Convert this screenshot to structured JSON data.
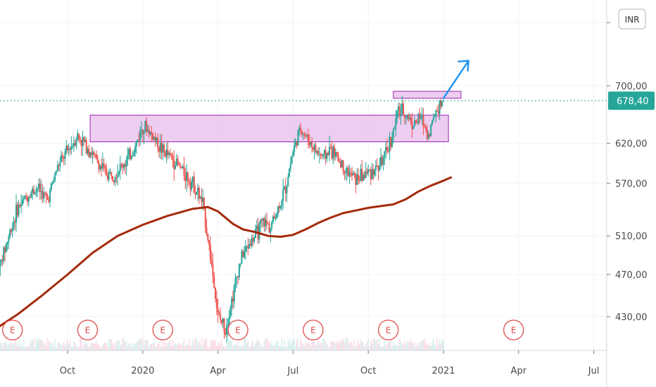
{
  "colors": {
    "up": "#26a69a",
    "down": "#ef5350",
    "ma": "#a52a0a",
    "zone_fill": "#e6b8ea",
    "zone_stroke": "#9c27b0",
    "arrow": "#2196f3",
    "price_badge": "#26a69a",
    "earnings": "#e04a4a",
    "grid": "#f0f3fa"
  },
  "currency_badge": "INR",
  "earnings_marker": "E",
  "chart_data": {
    "type": "candlestick",
    "yaxis": {
      "ticks": [
        "430,00",
        "470,00",
        "510,00",
        "570,00",
        "620,00",
        "700,00"
      ],
      "tick_values": [
        430,
        470,
        510,
        570,
        620,
        700
      ]
    },
    "xaxis": {
      "ticks": [
        "Oct",
        "2020",
        "Apr",
        "Jul",
        "Oct",
        "2021",
        "Apr",
        "Jul"
      ],
      "tick_months": [
        0,
        3,
        6,
        9,
        12,
        15,
        18,
        21
      ]
    },
    "last_price": 678.4,
    "last_price_label": "678,40",
    "price_path": [
      [
        -2.8,
        470
      ],
      [
        -2.4,
        505
      ],
      [
        -2.0,
        540
      ],
      [
        -1.6,
        555
      ],
      [
        -1.2,
        565
      ],
      [
        -0.8,
        550
      ],
      [
        -0.4,
        590
      ],
      [
        0.0,
        610
      ],
      [
        0.4,
        630
      ],
      [
        0.8,
        615
      ],
      [
        1.2,
        595
      ],
      [
        1.6,
        580
      ],
      [
        2.0,
        585
      ],
      [
        2.4,
        600
      ],
      [
        2.7,
        615
      ],
      [
        3.0,
        645
      ],
      [
        3.4,
        630
      ],
      [
        3.8,
        610
      ],
      [
        4.2,
        600
      ],
      [
        4.6,
        585
      ],
      [
        5.0,
        570
      ],
      [
        5.4,
        545
      ],
      [
        5.8,
        470
      ],
      [
        6.0,
        430
      ],
      [
        6.3,
        420
      ],
      [
        6.6,
        450
      ],
      [
        6.9,
        485
      ],
      [
        7.2,
        500
      ],
      [
        7.5,
        510
      ],
      [
        7.8,
        525
      ],
      [
        8.1,
        520
      ],
      [
        8.4,
        540
      ],
      [
        8.7,
        565
      ],
      [
        9.0,
        610
      ],
      [
        9.3,
        640
      ],
      [
        9.6,
        625
      ],
      [
        9.9,
        610
      ],
      [
        10.2,
        602
      ],
      [
        10.5,
        612
      ],
      [
        10.8,
        600
      ],
      [
        11.1,
        585
      ],
      [
        11.5,
        575
      ],
      [
        12.0,
        583
      ],
      [
        12.4,
        590
      ],
      [
        12.7,
        605
      ],
      [
        13.0,
        635
      ],
      [
        13.2,
        665
      ],
      [
        13.5,
        660
      ],
      [
        13.8,
        645
      ],
      [
        14.1,
        655
      ],
      [
        14.4,
        630
      ],
      [
        14.7,
        665
      ],
      [
        15.0,
        678.4
      ]
    ],
    "moving_average": [
      [
        -2.8,
        420
      ],
      [
        -2.0,
        432
      ],
      [
        -1.0,
        450
      ],
      [
        0.0,
        470
      ],
      [
        1.0,
        492
      ],
      [
        2.0,
        510
      ],
      [
        3.0,
        522
      ],
      [
        4.0,
        532
      ],
      [
        5.0,
        540
      ],
      [
        5.6,
        542
      ],
      [
        6.0,
        537
      ],
      [
        6.6,
        523
      ],
      [
        7.0,
        517
      ],
      [
        7.5,
        514
      ],
      [
        8.0,
        510
      ],
      [
        8.5,
        509
      ],
      [
        9.0,
        511
      ],
      [
        9.5,
        517
      ],
      [
        10.0,
        524
      ],
      [
        10.5,
        530
      ],
      [
        11.0,
        535
      ],
      [
        11.5,
        538
      ],
      [
        12.0,
        541
      ],
      [
        12.5,
        543
      ],
      [
        13.0,
        545
      ],
      [
        13.5,
        551
      ],
      [
        14.0,
        560
      ],
      [
        14.5,
        567
      ],
      [
        15.0,
        573
      ],
      [
        15.3,
        577
      ]
    ],
    "zones": [
      {
        "month_start": 0.9,
        "month_end": 15.2,
        "price_low": 622,
        "price_high": 658
      },
      {
        "month_start": 13.0,
        "month_end": 15.7,
        "price_low": 682,
        "price_high": 692
      }
    ],
    "projection_arrow": {
      "from": [
        15.0,
        682
      ],
      "to": [
        16.0,
        738
      ]
    },
    "earnings_months": [
      -2.2,
      0.8,
      3.8,
      6.8,
      9.8,
      12.8,
      17.8
    ]
  }
}
